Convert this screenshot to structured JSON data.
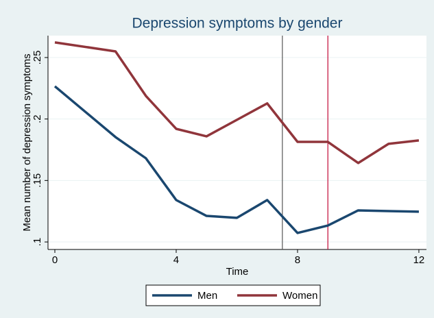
{
  "chart_data": {
    "type": "line",
    "title": "Depression symptoms by gender",
    "xlabel": "Time",
    "ylabel": "Mean number of depression symptoms",
    "x": [
      0,
      2,
      3,
      4,
      5,
      6,
      7,
      8,
      9,
      10,
      11,
      12
    ],
    "series": [
      {
        "name": "Men",
        "color": "#1a476f",
        "values": [
          0.2266,
          0.1853,
          0.1681,
          0.1341,
          0.1212,
          0.1196,
          0.1341,
          0.1073,
          0.1134,
          0.1257,
          0.1251,
          0.1246
        ]
      },
      {
        "name": "Women",
        "color": "#90353b",
        "values": [
          0.2623,
          0.255,
          0.2188,
          0.192,
          0.1859,
          0.1993,
          0.2127,
          0.1814,
          0.1814,
          0.1642,
          0.1798,
          0.1826
        ]
      }
    ],
    "xlines": [
      {
        "value": 7.5,
        "color": "#555555"
      },
      {
        "value": 9,
        "color": "#c10534"
      }
    ],
    "xlim": [
      -0.226,
      12.25
    ],
    "ylim": [
      0.0939,
      0.2678
    ],
    "xticks": [
      0,
      4,
      8,
      12
    ],
    "yticks": [
      {
        "value": 0.1,
        "label": ".1"
      },
      {
        "value": 0.15,
        "label": ".15"
      },
      {
        "value": 0.2,
        "label": ".2"
      },
      {
        "value": 0.25,
        "label": ".25"
      }
    ],
    "grid": true,
    "legend": "bottom"
  }
}
